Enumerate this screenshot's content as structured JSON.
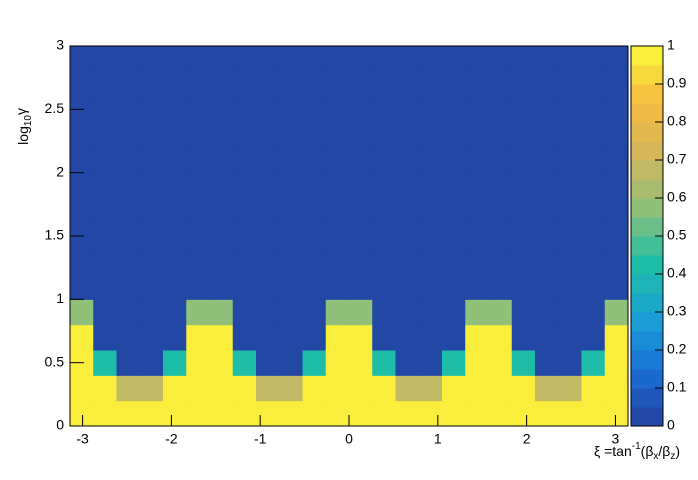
{
  "chart_data": {
    "type": "heatmap",
    "x_label_parts": [
      "ξ =tan",
      "-1",
      "(β",
      "x",
      "/β",
      "z",
      ")"
    ],
    "y_label_parts": [
      "log",
      "10",
      "γ"
    ],
    "xlim": [
      -3.1416,
      3.1416
    ],
    "xticks": [
      -3,
      -2,
      -1,
      0,
      1,
      2,
      3
    ],
    "ylim": [
      0,
      3
    ],
    "yticks": [
      0,
      0.5,
      1,
      1.5,
      2,
      2.5,
      3
    ],
    "zlim": [
      0,
      1
    ],
    "zticks": [
      0,
      0.1,
      0.2,
      0.3,
      0.4,
      0.5,
      0.6,
      0.7,
      0.8,
      0.9,
      1
    ],
    "levels": 20,
    "palette": [
      "#243f9b",
      "#1a6fd6",
      "#1aa0d4",
      "#1ebea6",
      "#8ec07a",
      "#d5b65b",
      "#f6bc3f",
      "#f9f93a"
    ],
    "x_edges": [
      -3.1416,
      -2.8798,
      -2.618,
      -2.3562,
      -2.0944,
      -1.8326,
      -1.5708,
      -1.309,
      -1.0472,
      -0.7854,
      -0.5236,
      -0.2618,
      0,
      0.2618,
      0.5236,
      0.7854,
      1.0472,
      1.309,
      1.5708,
      1.8326,
      2.0944,
      2.3562,
      2.618,
      2.8798,
      3.1416
    ],
    "y_edges": [
      0,
      0.2,
      0.4,
      0.6,
      0.8,
      1,
      1.2,
      1.4,
      1.6,
      1.8,
      2,
      2.2,
      2.4,
      2.6,
      2.8,
      3
    ],
    "z": [
      [
        1,
        1,
        1,
        1,
        1,
        1,
        1,
        1,
        1,
        1,
        1,
        1,
        1,
        1,
        1,
        1,
        1,
        1,
        1,
        1,
        1,
        1,
        1,
        1
      ],
      [
        1,
        1,
        0.67,
        0.67,
        1,
        1,
        1,
        1,
        0.67,
        0.67,
        1,
        1,
        1,
        1,
        0.67,
        0.67,
        1,
        1,
        1,
        1,
        0.67,
        0.67,
        1,
        1
      ],
      [
        1,
        0.43,
        0,
        0,
        0.43,
        1,
        1,
        0.43,
        0,
        0,
        0.43,
        1,
        1,
        0.43,
        0,
        0,
        0.43,
        1,
        1,
        0.43,
        0,
        0,
        0.43,
        1
      ],
      [
        1,
        0,
        0,
        0,
        0,
        1,
        1,
        0,
        0,
        0,
        0,
        1,
        1,
        0,
        0,
        0,
        0,
        1,
        1,
        0,
        0,
        0,
        0,
        1
      ],
      [
        0.57,
        0,
        0,
        0,
        0,
        0.57,
        0.57,
        0,
        0,
        0,
        0,
        0.57,
        0.57,
        0,
        0,
        0,
        0,
        0.57,
        0.57,
        0,
        0,
        0,
        0,
        0.57
      ],
      [
        0,
        0,
        0,
        0,
        0,
        0,
        0,
        0,
        0,
        0,
        0,
        0,
        0,
        0,
        0,
        0,
        0,
        0,
        0,
        0,
        0,
        0,
        0,
        0
      ],
      [
        0,
        0,
        0,
        0,
        0,
        0,
        0,
        0,
        0,
        0,
        0,
        0,
        0,
        0,
        0,
        0,
        0,
        0,
        0,
        0,
        0,
        0,
        0,
        0
      ],
      [
        0,
        0,
        0,
        0,
        0,
        0,
        0,
        0,
        0,
        0,
        0,
        0,
        0,
        0,
        0,
        0,
        0,
        0,
        0,
        0,
        0,
        0,
        0,
        0
      ],
      [
        0,
        0,
        0,
        0,
        0,
        0,
        0,
        0,
        0,
        0,
        0,
        0,
        0,
        0,
        0,
        0,
        0,
        0,
        0,
        0,
        0,
        0,
        0,
        0
      ],
      [
        0,
        0,
        0,
        0,
        0,
        0,
        0,
        0,
        0,
        0,
        0,
        0,
        0,
        0,
        0,
        0,
        0,
        0,
        0,
        0,
        0,
        0,
        0,
        0
      ],
      [
        0,
        0,
        0,
        0,
        0,
        0,
        0,
        0,
        0,
        0,
        0,
        0,
        0,
        0,
        0,
        0,
        0,
        0,
        0,
        0,
        0,
        0,
        0,
        0
      ],
      [
        0,
        0,
        0,
        0,
        0,
        0,
        0,
        0,
        0,
        0,
        0,
        0,
        0,
        0,
        0,
        0,
        0,
        0,
        0,
        0,
        0,
        0,
        0,
        0
      ],
      [
        0,
        0,
        0,
        0,
        0,
        0,
        0,
        0,
        0,
        0,
        0,
        0,
        0,
        0,
        0,
        0,
        0,
        0,
        0,
        0,
        0,
        0,
        0,
        0
      ],
      [
        0,
        0,
        0,
        0,
        0,
        0,
        0,
        0,
        0,
        0,
        0,
        0,
        0,
        0,
        0,
        0,
        0,
        0,
        0,
        0,
        0,
        0,
        0,
        0
      ],
      [
        0,
        0,
        0,
        0,
        0,
        0,
        0,
        0,
        0,
        0,
        0,
        0,
        0,
        0,
        0,
        0,
        0,
        0,
        0,
        0,
        0,
        0,
        0,
        0
      ]
    ]
  }
}
